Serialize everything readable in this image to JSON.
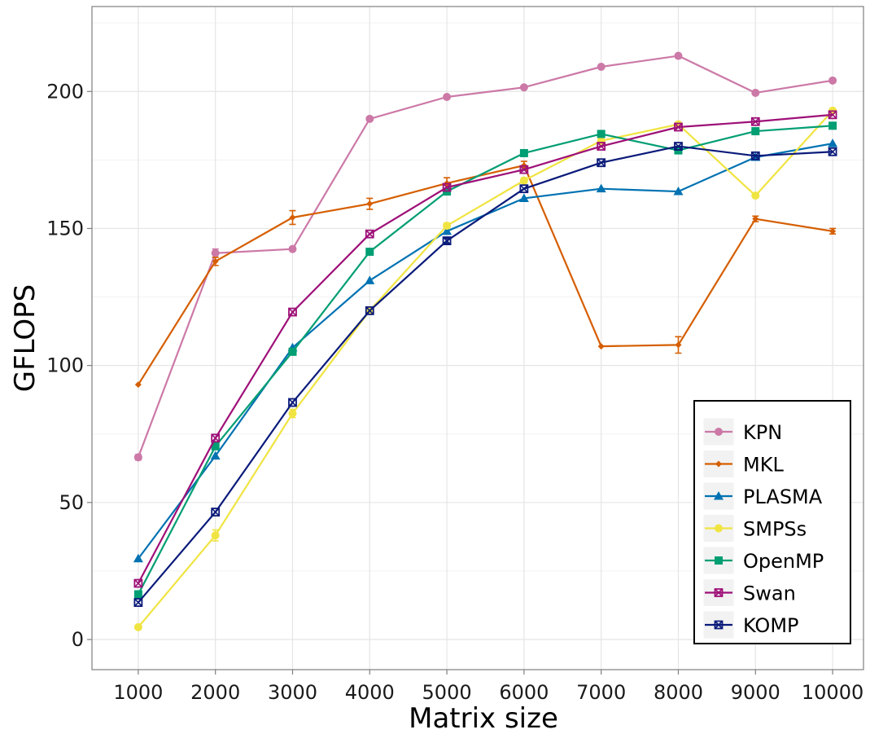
{
  "chart_data": {
    "type": "line",
    "title": "",
    "xlabel": "Matrix size",
    "ylabel": "GFLOPS",
    "x": [
      1000,
      2000,
      3000,
      4000,
      5000,
      6000,
      7000,
      8000,
      9000,
      10000
    ],
    "x_tick_labels": [
      "1000",
      "2000",
      "3000",
      "4000",
      "5000",
      "6000",
      "7000",
      "8000",
      "9000",
      "10000"
    ],
    "y_ticks": [
      0,
      50,
      100,
      150,
      200
    ],
    "y_tick_labels": [
      "0",
      "50",
      "100",
      "150",
      "200"
    ],
    "xlim": [
      400,
      10400
    ],
    "ylim": [
      -11,
      231
    ],
    "grid": true,
    "legend_position": "bottom-right",
    "series": [
      {
        "name": "KPN",
        "color": "#cc79a7",
        "marker": "circle",
        "values": [
          66.5,
          141,
          142.5,
          190,
          198,
          201.5,
          209,
          213,
          199.5,
          204
        ],
        "err": [
          1,
          1.5,
          0.5,
          0.5,
          0.5,
          0.5,
          0.5,
          0.5,
          0.5,
          0.5
        ]
      },
      {
        "name": "MKL",
        "color": "#d55e00",
        "marker": "diamond",
        "values": [
          93,
          138,
          154,
          159,
          166.5,
          173,
          107,
          107.5,
          153.5,
          149
        ],
        "err": [
          0.5,
          1.5,
          2.5,
          2,
          2,
          1.5,
          0.5,
          3,
          1,
          1
        ]
      },
      {
        "name": "PLASMA",
        "color": "#0072b2",
        "marker": "triangle",
        "values": [
          29.5,
          67,
          106.5,
          131,
          149,
          161,
          164.5,
          163.5,
          176,
          181
        ],
        "err": [
          0.5,
          0.5,
          0.5,
          0.5,
          0.5,
          0.5,
          0.5,
          0.5,
          0.5,
          0.5
        ]
      },
      {
        "name": "SMPSs",
        "color": "#f0e442",
        "marker": "circle",
        "values": [
          4.5,
          38,
          82.5,
          120,
          151,
          167.5,
          182,
          188,
          162,
          193
        ],
        "err": [
          0.5,
          2,
          1.5,
          1,
          1,
          1,
          0.5,
          0.5,
          0.5,
          0.5
        ]
      },
      {
        "name": "OpenMP",
        "color": "#009e73",
        "marker": "square",
        "values": [
          16.5,
          70.5,
          105,
          141.5,
          163.5,
          177.5,
          184.5,
          178.5,
          185.5,
          187.5
        ],
        "err": [
          0.5,
          0.5,
          0.5,
          0.5,
          0.5,
          0.5,
          0.5,
          0.5,
          0.5,
          0.5
        ]
      },
      {
        "name": "Swan",
        "color": "#9e1078",
        "marker": "square-x",
        "values": [
          20.5,
          73.5,
          119.5,
          148,
          165,
          171.5,
          180,
          187,
          189,
          191.5
        ],
        "err": [
          0.5,
          0.5,
          0.5,
          0.5,
          0.5,
          0.5,
          0.5,
          0.5,
          0.5,
          0.5
        ]
      },
      {
        "name": "KOMP",
        "color": "#0a1a7a",
        "marker": "square-x",
        "values": [
          13.5,
          46.5,
          86.5,
          120,
          145.5,
          164.5,
          174,
          180,
          176.5,
          178
        ],
        "err": [
          0.5,
          0.5,
          0.5,
          0.5,
          1,
          0.5,
          0.5,
          0.5,
          0.5,
          0.5
        ]
      }
    ]
  }
}
